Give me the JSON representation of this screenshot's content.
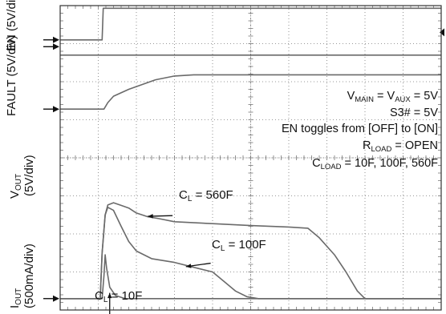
{
  "chart_data": {
    "type": "line",
    "title": "",
    "grid": "dotted 10x10 oscilloscope graticule",
    "channels": [
      {
        "name": "EN",
        "scale": "(5V/div)"
      },
      {
        "name": "FAULT",
        "scale": "(5V/div)"
      },
      {
        "name": "V",
        "sub": "OUT",
        "scale": "(5V/div)"
      },
      {
        "name": "I",
        "sub": "OUT",
        "scale": "(500mA/div)"
      }
    ],
    "xlabel": "",
    "xlim": [
      0,
      10
    ],
    "ylim": [
      0,
      8
    ],
    "series": [
      {
        "channel": "EN",
        "x": [
          0,
          1.1,
          1.13,
          10
        ],
        "y": [
          7.1,
          7.1,
          7.93,
          7.93
        ]
      },
      {
        "channel": "FAULT",
        "x": [
          0,
          10
        ],
        "y": [
          6.7,
          6.7
        ]
      },
      {
        "channel": "VOUT",
        "x": [
          0,
          1.15,
          1.25,
          1.4,
          1.8,
          2.5,
          3.0,
          3.5,
          10
        ],
        "y": [
          5.28,
          5.28,
          5.45,
          5.62,
          5.8,
          6.05,
          6.15,
          6.18,
          6.18
        ]
      },
      {
        "channel": "IOUT",
        "name": "C_L = 560F",
        "x": [
          0,
          1.0,
          1.05,
          1.1,
          1.18,
          1.25,
          1.4,
          1.6,
          1.8,
          2.0,
          2.3,
          2.6,
          3.0,
          4.0,
          5.0,
          6.0,
          6.5,
          6.8,
          7.2,
          7.5,
          7.8,
          8.0,
          10
        ],
        "y": [
          0.3,
          0.3,
          0.3,
          1.5,
          2.5,
          2.76,
          2.82,
          2.75,
          2.68,
          2.55,
          2.45,
          2.4,
          2.32,
          2.27,
          2.22,
          2.18,
          2.15,
          1.9,
          1.45,
          1.0,
          0.5,
          0.3,
          0.3
        ]
      },
      {
        "channel": "IOUT",
        "name": "C_L = 100F",
        "x": [
          0,
          1.0,
          1.05,
          1.1,
          1.18,
          1.25,
          1.4,
          1.6,
          1.8,
          2.0,
          2.4,
          3.0,
          3.6,
          4.0,
          4.3,
          4.6,
          4.9,
          5.2,
          10
        ],
        "y": [
          0.3,
          0.3,
          0.3,
          1.5,
          2.5,
          2.7,
          2.62,
          2.2,
          1.8,
          1.55,
          1.35,
          1.25,
          1.1,
          1.0,
          0.75,
          0.5,
          0.35,
          0.3,
          0.3
        ]
      },
      {
        "channel": "IOUT",
        "name": "C_L = 10F",
        "x": [
          0,
          1.1,
          1.15,
          1.18,
          1.22,
          1.3,
          1.45,
          1.7,
          10
        ],
        "y": [
          0.3,
          0.3,
          0.9,
          1.45,
          1.1,
          0.6,
          0.38,
          0.3,
          0.3
        ]
      }
    ],
    "series_labels": [
      "560F",
      "100F",
      "10F"
    ],
    "annotations": {
      "line1": {
        "a": "V",
        "a_sub": "MAIN",
        "b": " = V",
        "b_sub": "AUX",
        "c": " = 5V"
      },
      "line2": "S3# = 5V",
      "line3": "EN toggles from [OFF] to [ON]",
      "line4": {
        "a": "R",
        "a_sub": "LOAD",
        "b": " = OPEN"
      },
      "line5": {
        "a": "C",
        "a_sub": "LOAD",
        "b": " = 10F, 100F, 560F"
      },
      "cl_prefix": "C",
      "cl_sub": "L",
      "cl_eq": " = "
    },
    "colors": {
      "trace": "#6a6a6a",
      "grid": "#777777",
      "frame": "#333333",
      "marker": "#111111"
    }
  }
}
